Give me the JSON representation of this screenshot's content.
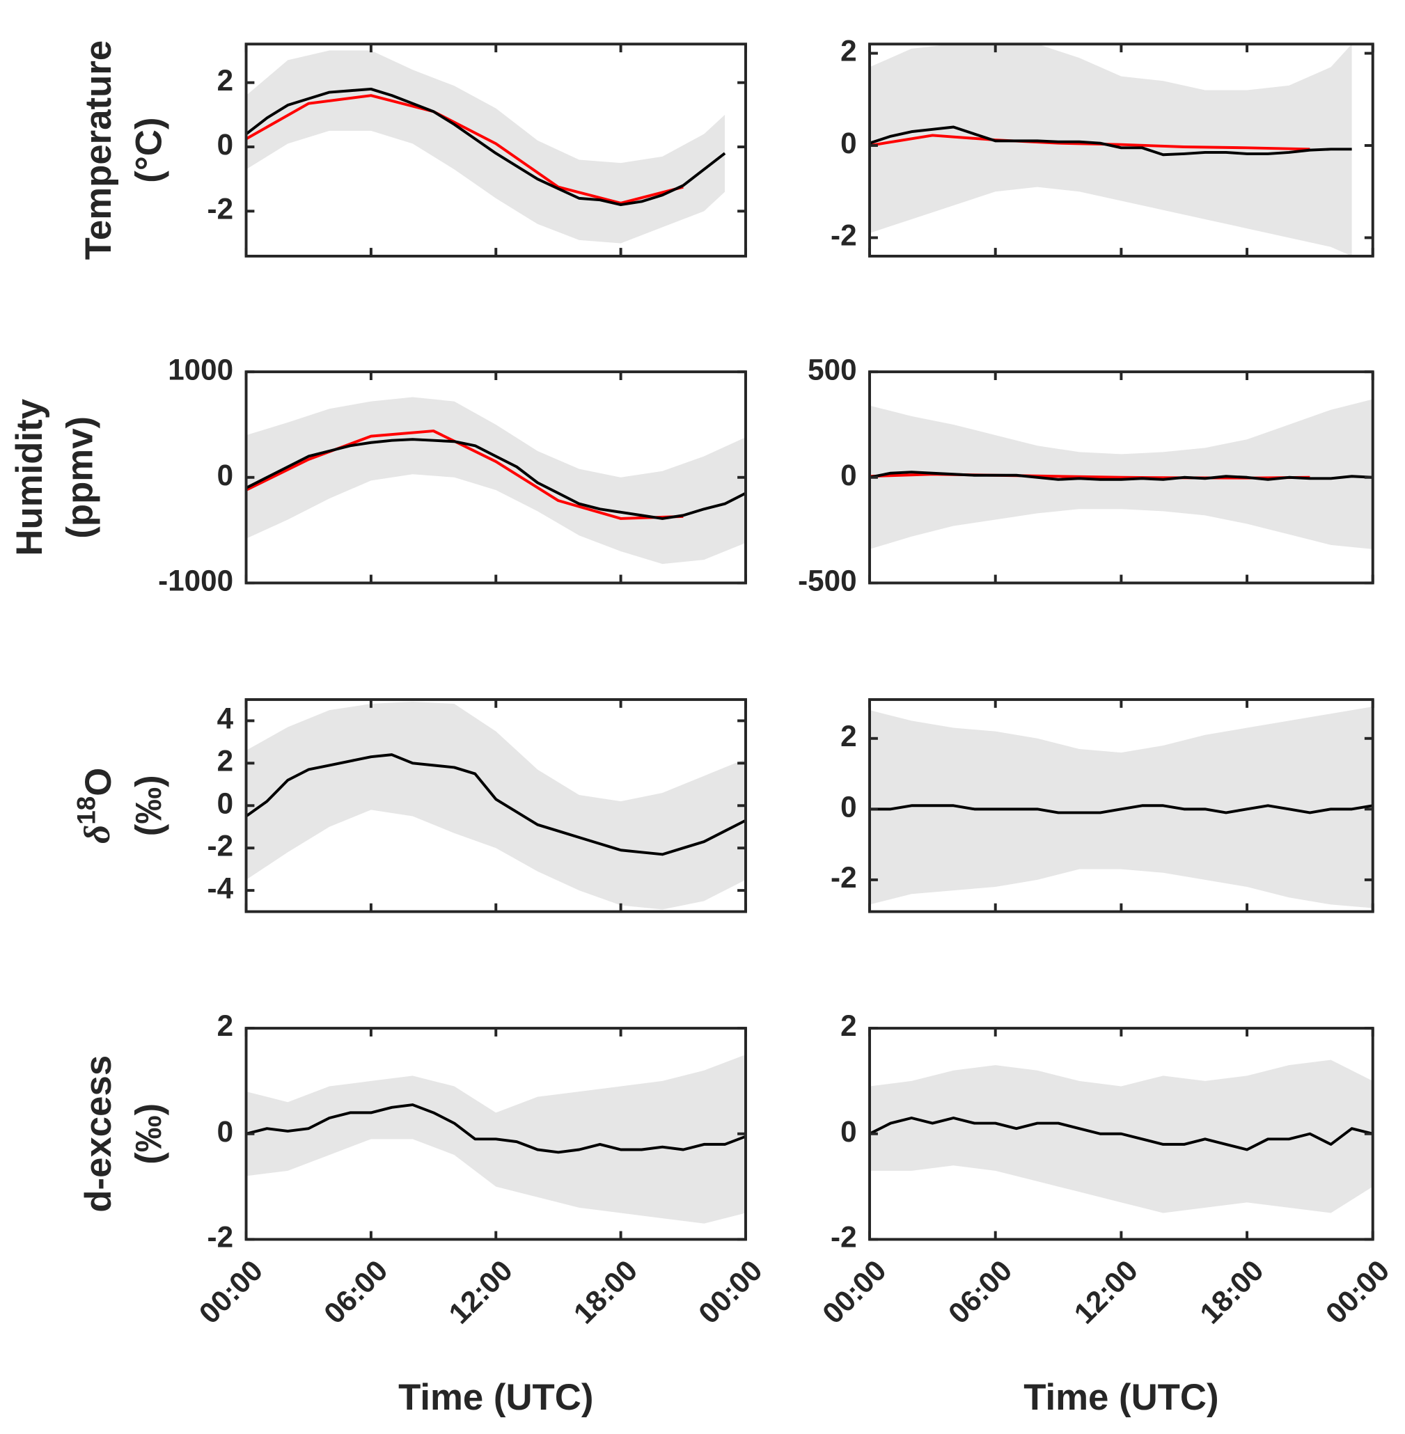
{
  "chart_data": [
    {
      "type": "line",
      "ylabel": [
        "Temperature",
        "(°C)"
      ],
      "xlim": [
        0,
        24
      ],
      "xticks": [
        0,
        6,
        12,
        18,
        24
      ],
      "ylim": [
        -3.4,
        3.2
      ],
      "yticks": [
        -2,
        0,
        2
      ],
      "band": {
        "color": "#e6e6e6",
        "x": [
          0,
          2,
          4,
          6,
          8,
          10,
          12,
          14,
          16,
          18,
          20,
          22,
          23
        ],
        "upper": [
          1.6,
          2.7,
          3.0,
          3.0,
          2.4,
          1.9,
          1.2,
          0.2,
          -0.4,
          -0.5,
          -0.3,
          0.4,
          1.0
        ],
        "lower": [
          -0.7,
          0.1,
          0.5,
          0.5,
          0.1,
          -0.7,
          -1.6,
          -2.4,
          -2.9,
          -3.0,
          -2.5,
          -2.0,
          -1.4
        ]
      },
      "series": [
        {
          "color": "#ff0000",
          "x": [
            0,
            3,
            6,
            9,
            12,
            15,
            18,
            21
          ],
          "values": [
            0.25,
            1.35,
            1.6,
            1.1,
            0.1,
            -1.25,
            -1.75,
            -1.25
          ]
        },
        {
          "color": "#000000",
          "x": [
            0,
            1,
            2,
            3,
            4,
            5,
            6,
            7,
            8,
            9,
            10,
            11,
            12,
            13,
            14,
            15,
            16,
            17,
            18,
            19,
            20,
            21,
            22,
            23
          ],
          "values": [
            0.4,
            0.9,
            1.3,
            1.5,
            1.7,
            1.75,
            1.8,
            1.6,
            1.35,
            1.1,
            0.7,
            0.25,
            -0.2,
            -0.6,
            -1.0,
            -1.3,
            -1.6,
            -1.65,
            -1.8,
            -1.7,
            -1.5,
            -1.2,
            -0.7,
            -0.2
          ]
        }
      ]
    },
    {
      "type": "line",
      "xlim": [
        0,
        24
      ],
      "xticks": [
        0,
        6,
        12,
        18,
        24
      ],
      "ylim": [
        -2.4,
        2.2
      ],
      "yticks": [
        -2,
        0,
        2
      ],
      "band": {
        "color": "#e6e6e6",
        "x": [
          0,
          2,
          4,
          6,
          8,
          10,
          12,
          14,
          16,
          18,
          20,
          22,
          23
        ],
        "upper": [
          1.7,
          2.1,
          2.2,
          2.2,
          2.2,
          1.9,
          1.5,
          1.4,
          1.2,
          1.2,
          1.3,
          1.7,
          2.2
        ],
        "lower": [
          -1.9,
          -1.6,
          -1.3,
          -1.0,
          -0.9,
          -1.0,
          -1.2,
          -1.4,
          -1.6,
          -1.8,
          -2.0,
          -2.2,
          -2.4
        ]
      },
      "series": [
        {
          "color": "#ff0000",
          "x": [
            0,
            3,
            6,
            9,
            12,
            15,
            18,
            21
          ],
          "values": [
            0,
            0.22,
            0.12,
            0.05,
            0.02,
            -0.03,
            -0.05,
            -0.08
          ]
        },
        {
          "color": "#000000",
          "x": [
            0,
            1,
            2,
            3,
            4,
            5,
            6,
            7,
            8,
            9,
            10,
            11,
            12,
            13,
            14,
            15,
            16,
            17,
            18,
            19,
            20,
            21,
            22,
            23
          ],
          "values": [
            0.05,
            0.2,
            0.3,
            0.35,
            0.4,
            0.25,
            0.1,
            0.1,
            0.1,
            0.08,
            0.08,
            0.05,
            -0.05,
            -0.05,
            -0.2,
            -0.18,
            -0.15,
            -0.15,
            -0.18,
            -0.18,
            -0.15,
            -0.1,
            -0.08,
            -0.08
          ]
        }
      ]
    },
    {
      "type": "line",
      "ylabel": [
        "Humidity",
        "(ppmv)"
      ],
      "xlim": [
        0,
        24
      ],
      "xticks": [
        0,
        6,
        12,
        18,
        24
      ],
      "ylim": [
        -1000,
        1000
      ],
      "yticks": [
        -1000,
        0,
        1000
      ],
      "band": {
        "color": "#e6e6e6",
        "x": [
          0,
          2,
          4,
          6,
          8,
          10,
          12,
          14,
          16,
          18,
          20,
          22,
          24
        ],
        "upper": [
          400,
          520,
          650,
          720,
          760,
          720,
          500,
          250,
          80,
          0,
          60,
          200,
          380
        ],
        "lower": [
          -580,
          -400,
          -200,
          -30,
          30,
          0,
          -120,
          -320,
          -550,
          -700,
          -820,
          -780,
          -620
        ]
      },
      "series": [
        {
          "color": "#ff0000",
          "x": [
            0,
            3,
            6,
            9,
            12,
            15,
            18,
            21
          ],
          "values": [
            -120,
            170,
            390,
            440,
            150,
            -220,
            -390,
            -370
          ]
        },
        {
          "color": "#000000",
          "x": [
            0,
            1,
            2,
            3,
            4,
            5,
            6,
            7,
            8,
            9,
            10,
            11,
            12,
            13,
            14,
            15,
            16,
            17,
            18,
            19,
            20,
            21,
            22,
            23,
            24
          ],
          "values": [
            -100,
            0,
            100,
            200,
            250,
            300,
            330,
            350,
            360,
            350,
            340,
            300,
            200,
            100,
            -50,
            -150,
            -250,
            -300,
            -330,
            -360,
            -390,
            -360,
            -300,
            -250,
            -150
          ]
        }
      ]
    },
    {
      "type": "line",
      "xlim": [
        0,
        24
      ],
      "xticks": [
        0,
        6,
        12,
        18,
        24
      ],
      "ylim": [
        -500,
        500
      ],
      "yticks": [
        -500,
        0,
        500
      ],
      "band": {
        "color": "#e6e6e6",
        "x": [
          0,
          2,
          4,
          6,
          8,
          10,
          12,
          14,
          16,
          18,
          20,
          22,
          24
        ],
        "upper": [
          340,
          290,
          250,
          200,
          150,
          120,
          110,
          120,
          140,
          180,
          250,
          320,
          370
        ],
        "lower": [
          -340,
          -280,
          -230,
          -200,
          -170,
          -150,
          -150,
          -160,
          -180,
          -220,
          -270,
          -320,
          -340
        ]
      },
      "series": [
        {
          "color": "#ff0000",
          "x": [
            0,
            3,
            6,
            9,
            12,
            15,
            18,
            21
          ],
          "values": [
            5,
            15,
            10,
            5,
            0,
            -2,
            -3,
            0
          ]
        },
        {
          "color": "#000000",
          "x": [
            0,
            1,
            2,
            3,
            4,
            5,
            6,
            7,
            8,
            9,
            10,
            11,
            12,
            13,
            14,
            15,
            16,
            17,
            18,
            19,
            20,
            21,
            22,
            23,
            24
          ],
          "values": [
            0,
            20,
            25,
            20,
            15,
            10,
            10,
            10,
            0,
            -10,
            -5,
            -10,
            -10,
            -5,
            -10,
            0,
            -5,
            5,
            0,
            -10,
            0,
            -5,
            -5,
            5,
            0
          ]
        }
      ]
    },
    {
      "type": "line",
      "ylabel": [
        [
          {
            "text": "δ",
            "style": "italic"
          },
          {
            "text": "18",
            "style": "sup"
          },
          {
            "text": "O"
          }
        ],
        "(‰)"
      ],
      "xlim": [
        0,
        24
      ],
      "xticks": [
        0,
        6,
        12,
        18,
        24
      ],
      "ylim": [
        -5,
        5
      ],
      "yticks": [
        -4,
        -2,
        0,
        2,
        4
      ],
      "band": {
        "color": "#e6e6e6",
        "x": [
          0,
          2,
          4,
          6,
          8,
          10,
          12,
          14,
          16,
          18,
          20,
          22,
          24
        ],
        "upper": [
          2.6,
          3.7,
          4.5,
          4.8,
          4.9,
          4.8,
          3.5,
          1.7,
          0.5,
          0.2,
          0.6,
          1.4,
          2.2
        ],
        "lower": [
          -3.5,
          -2.2,
          -1.0,
          -0.2,
          -0.5,
          -1.3,
          -2.0,
          -3.1,
          -4.0,
          -4.7,
          -4.9,
          -4.5,
          -3.5
        ]
      },
      "series": [
        {
          "color": "#000000",
          "x": [
            0,
            1,
            2,
            3,
            4,
            5,
            6,
            7,
            8,
            9,
            10,
            11,
            12,
            13,
            14,
            15,
            16,
            17,
            18,
            19,
            20,
            21,
            22,
            23,
            24
          ],
          "values": [
            -0.5,
            0.2,
            1.2,
            1.7,
            1.9,
            2.1,
            2.3,
            2.4,
            2.0,
            1.9,
            1.8,
            1.5,
            0.3,
            -0.3,
            -0.9,
            -1.2,
            -1.5,
            -1.8,
            -2.1,
            -2.2,
            -2.3,
            -2.0,
            -1.7,
            -1.2,
            -0.7
          ]
        }
      ]
    },
    {
      "type": "line",
      "xlim": [
        0,
        24
      ],
      "xticks": [
        0,
        6,
        12,
        18,
        24
      ],
      "ylim": [
        -2.9,
        3.1
      ],
      "yticks": [
        -2,
        0,
        2
      ],
      "band": {
        "color": "#e6e6e6",
        "x": [
          0,
          2,
          4,
          6,
          8,
          10,
          12,
          14,
          16,
          18,
          20,
          22,
          24
        ],
        "upper": [
          2.8,
          2.5,
          2.3,
          2.2,
          2.0,
          1.7,
          1.6,
          1.8,
          2.1,
          2.3,
          2.5,
          2.7,
          2.9
        ],
        "lower": [
          -2.7,
          -2.4,
          -2.3,
          -2.2,
          -2.0,
          -1.7,
          -1.7,
          -1.8,
          -2.0,
          -2.2,
          -2.5,
          -2.7,
          -2.8
        ]
      },
      "series": [
        {
          "color": "#000000",
          "x": [
            0,
            1,
            2,
            3,
            4,
            5,
            6,
            7,
            8,
            9,
            10,
            11,
            12,
            13,
            14,
            15,
            16,
            17,
            18,
            19,
            20,
            21,
            22,
            23,
            24
          ],
          "values": [
            0,
            0,
            0.1,
            0.1,
            0.1,
            0,
            0,
            0,
            0,
            -0.1,
            -0.1,
            -0.1,
            0,
            0.1,
            0.1,
            0,
            0,
            -0.1,
            0,
            0.1,
            0,
            -0.1,
            0,
            0,
            0.1
          ]
        }
      ]
    },
    {
      "type": "line",
      "ylabel": [
        "d-excess",
        "(‰)"
      ],
      "xlabel": "Time (UTC)",
      "xlim": [
        0,
        24
      ],
      "xticks": [
        {
          "value": 0,
          "label": "00:00"
        },
        {
          "value": 6,
          "label": "06:00"
        },
        {
          "value": 12,
          "label": "12:00"
        },
        {
          "value": 18,
          "label": "18:00"
        },
        {
          "value": 24,
          "label": "00:00"
        }
      ],
      "ylim": [
        -2,
        2
      ],
      "yticks": [
        -2,
        0,
        2
      ],
      "band": {
        "color": "#e6e6e6",
        "x": [
          0,
          2,
          4,
          6,
          8,
          10,
          12,
          14,
          16,
          18,
          20,
          22,
          24
        ],
        "upper": [
          0.8,
          0.6,
          0.9,
          1.0,
          1.1,
          0.9,
          0.4,
          0.7,
          0.8,
          0.9,
          1.0,
          1.2,
          1.5
        ],
        "lower": [
          -0.8,
          -0.7,
          -0.4,
          -0.1,
          -0.1,
          -0.4,
          -1.0,
          -1.2,
          -1.4,
          -1.5,
          -1.6,
          -1.7,
          -1.5
        ]
      },
      "series": [
        {
          "color": "#000000",
          "x": [
            0,
            1,
            2,
            3,
            4,
            5,
            6,
            7,
            8,
            9,
            10,
            11,
            12,
            13,
            14,
            15,
            16,
            17,
            18,
            19,
            20,
            21,
            22,
            23,
            24
          ],
          "values": [
            0,
            0.1,
            0.05,
            0.1,
            0.3,
            0.4,
            0.4,
            0.5,
            0.55,
            0.4,
            0.2,
            -0.1,
            -0.1,
            -0.15,
            -0.3,
            -0.35,
            -0.3,
            -0.2,
            -0.3,
            -0.3,
            -0.25,
            -0.3,
            -0.2,
            -0.2,
            -0.05
          ]
        }
      ]
    },
    {
      "type": "line",
      "xlabel": "Time (UTC)",
      "xlim": [
        0,
        24
      ],
      "xticks": [
        {
          "value": 0,
          "label": "00:00"
        },
        {
          "value": 6,
          "label": "06:00"
        },
        {
          "value": 12,
          "label": "12:00"
        },
        {
          "value": 18,
          "label": "18:00"
        },
        {
          "value": 24,
          "label": "00:00"
        }
      ],
      "ylim": [
        -2,
        2
      ],
      "yticks": [
        -2,
        0,
        2
      ],
      "band": {
        "color": "#e6e6e6",
        "x": [
          0,
          2,
          4,
          6,
          8,
          10,
          12,
          14,
          16,
          18,
          20,
          22,
          24
        ],
        "upper": [
          0.9,
          1.0,
          1.2,
          1.3,
          1.2,
          1.0,
          0.9,
          1.1,
          1.0,
          1.1,
          1.3,
          1.4,
          1.0
        ],
        "lower": [
          -0.7,
          -0.7,
          -0.6,
          -0.7,
          -0.9,
          -1.1,
          -1.3,
          -1.5,
          -1.4,
          -1.3,
          -1.4,
          -1.5,
          -1.0
        ]
      },
      "series": [
        {
          "color": "#000000",
          "x": [
            0,
            1,
            2,
            3,
            4,
            5,
            6,
            7,
            8,
            9,
            10,
            11,
            12,
            13,
            14,
            15,
            16,
            17,
            18,
            19,
            20,
            21,
            22,
            23,
            24
          ],
          "values": [
            0,
            0.2,
            0.3,
            0.2,
            0.3,
            0.2,
            0.2,
            0.1,
            0.2,
            0.2,
            0.1,
            0,
            0,
            -0.1,
            -0.2,
            -0.2,
            -0.1,
            -0.2,
            -0.3,
            -0.1,
            -0.1,
            0,
            -0.2,
            0.1,
            0
          ]
        }
      ]
    }
  ]
}
